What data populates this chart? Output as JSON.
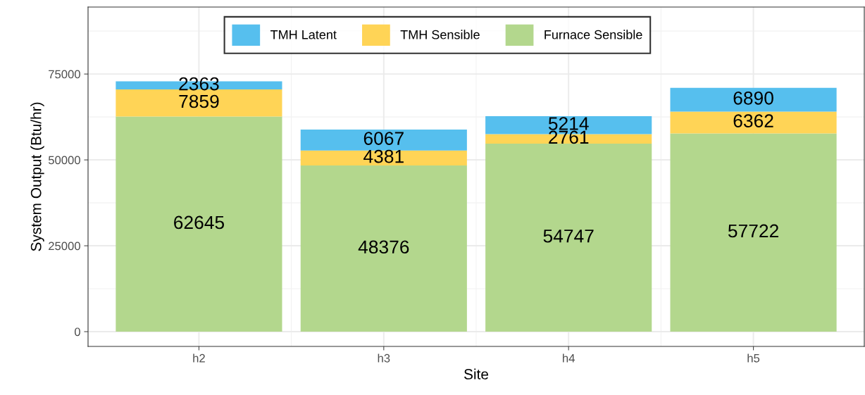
{
  "chart_data": {
    "type": "bar",
    "stacked": true,
    "xlabel": "Site",
    "ylabel": "System Output (Btu/hr)",
    "categories": [
      "h2",
      "h3",
      "h4",
      "h5"
    ],
    "series": [
      {
        "name": "Furnace Sensible",
        "color": "#b3d78d",
        "values": [
          62645,
          48376,
          54747,
          57722
        ]
      },
      {
        "name": "TMH Sensible",
        "color": "#ffd456",
        "values": [
          7859,
          4381,
          2761,
          6362
        ]
      },
      {
        "name": "TMH Latent",
        "color": "#56bfee",
        "values": [
          2363,
          6067,
          5214,
          6890
        ]
      }
    ],
    "ylim": [
      -4300,
      94500
    ],
    "yticks": [
      0,
      25000,
      50000,
      75000
    ],
    "grid": true,
    "legend": "top",
    "data_labels": true
  }
}
